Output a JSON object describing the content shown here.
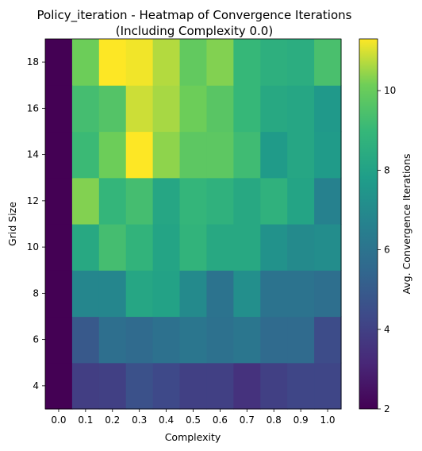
{
  "chart_data": {
    "type": "heatmap",
    "title": "Policy_iteration - Heatmap of Convergence Iterations",
    "subtitle": "(Including Complexity 0.0)",
    "xlabel": "Complexity",
    "ylabel": "Grid Size",
    "colorbar_label": "Avg. Convergence Iterations",
    "colormap": "viridis",
    "x": [
      "0.0",
      "0.1",
      "0.2",
      "0.3",
      "0.4",
      "0.5",
      "0.6",
      "0.7",
      "0.8",
      "0.9",
      "1.0"
    ],
    "y": [
      4,
      6,
      8,
      10,
      12,
      14,
      16,
      18
    ],
    "y_ticks": [
      "4",
      "6",
      "8",
      "10",
      "12",
      "14",
      "16",
      "18"
    ],
    "color_range": [
      2,
      11.3
    ],
    "colorbar_ticks": [
      "2",
      "4",
      "6",
      "8",
      "10"
    ],
    "values": [
      [
        2.0,
        3.9,
        4.0,
        4.6,
        4.3,
        4.0,
        4.0,
        3.5,
        4.0,
        4.2,
        4.2
      ],
      [
        2.0,
        4.9,
        5.8,
        5.6,
        5.9,
        6.1,
        5.9,
        6.1,
        5.6,
        5.6,
        4.4
      ],
      [
        2.0,
        6.8,
        6.8,
        8.2,
        8.0,
        7.0,
        6.0,
        7.2,
        6.0,
        6.0,
        5.8
      ],
      [
        2.0,
        8.3,
        9.3,
        8.8,
        8.1,
        8.8,
        8.3,
        8.3,
        7.3,
        7.0,
        7.1
      ],
      [
        2.0,
        10.3,
        8.9,
        9.3,
        8.2,
        8.9,
        8.7,
        8.3,
        8.7,
        8.1,
        6.6
      ],
      [
        2.0,
        9.1,
        10.1,
        11.3,
        10.4,
        9.8,
        9.8,
        9.2,
        7.7,
        8.2,
        7.7
      ],
      [
        2.0,
        9.3,
        9.6,
        10.9,
        10.6,
        10.1,
        9.7,
        9.0,
        8.3,
        8.2,
        7.6
      ],
      [
        2.0,
        10.1,
        11.3,
        11.2,
        10.7,
        9.9,
        10.3,
        9.0,
        8.6,
        8.5,
        9.4
      ]
    ]
  }
}
